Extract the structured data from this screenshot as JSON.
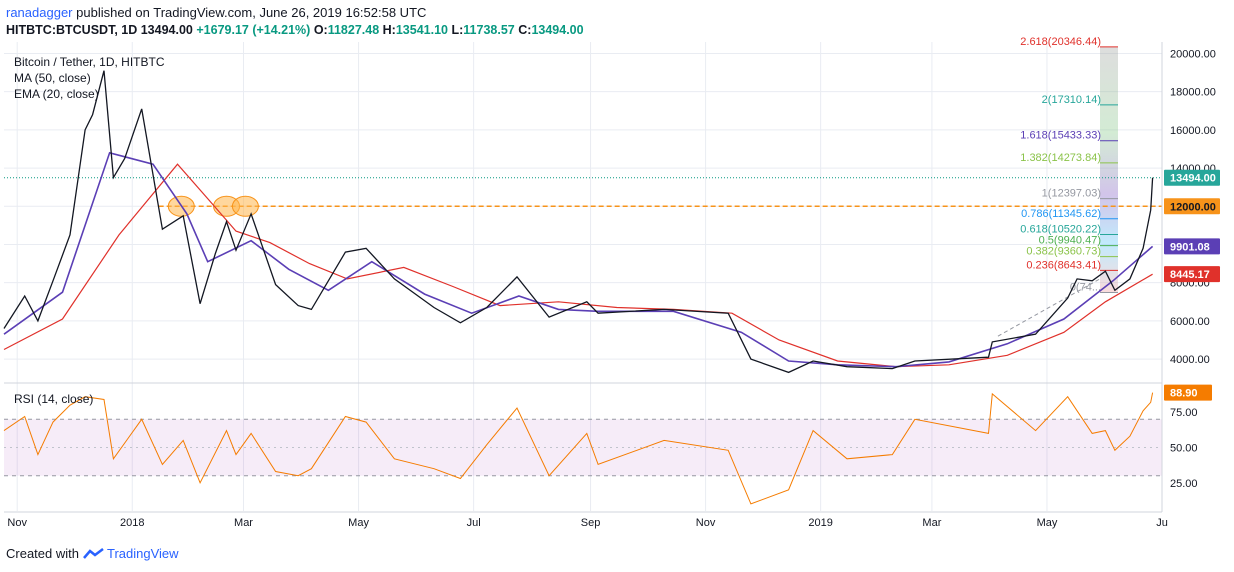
{
  "header": {
    "author": "ranadagger",
    "published_text": "published on TradingView.com, June 26, 2019 16:52:58 UTC",
    "symbol": "HITBTC:BTCUSDT, 1D",
    "price": "13494.00",
    "change": "+1679.17 (+14.21%)",
    "open_label": "O:",
    "open": "11827.48",
    "high_label": "H:",
    "high": "13541.10",
    "low_label": "L:",
    "low": "11738.57",
    "close_label": "C:",
    "close": "13494.00"
  },
  "legend": {
    "title": "Bitcoin / Tether, 1D, HITBTC",
    "ma": "MA (50, close)",
    "ema": "EMA (20, close)"
  },
  "footer": {
    "created_with": "Created with",
    "brand": "TradingView"
  },
  "colors": {
    "up": "#089981",
    "down": "#131722",
    "ema": "#5b3fb5",
    "ma": "#e0312b",
    "rsi": "#f57c00",
    "orange_line": "#f7931a",
    "grid": "#e9ecf2"
  },
  "chart_data": [
    {
      "type": "line",
      "title": "Bitcoin / Tether, 1D, HITBTC",
      "ylim": [
        2800,
        20600
      ],
      "y_ticks": [
        4000,
        6000,
        8000,
        10000,
        12000,
        14000,
        16000,
        18000,
        20000
      ],
      "y_tick_labels": [
        "4000.00",
        "6000.00",
        "8000.00",
        "10000.00",
        "12000.00",
        "14000.00",
        "16000.00",
        "18000.00",
        "20000.00"
      ],
      "x_tick_labels": [
        "Nov",
        "2018",
        "Mar",
        "May",
        "Jul",
        "Sep",
        "Nov",
        "2019",
        "Mar",
        "May",
        "Ju"
      ],
      "x_tick_dates": [
        "2017-11-01",
        "2018-01-01",
        "2018-03-01",
        "2018-05-01",
        "2018-07-01",
        "2018-09-01",
        "2018-11-01",
        "2019-01-01",
        "2019-03-01",
        "2019-05-01",
        "2019-07-01"
      ],
      "xlim": [
        "2017-10-25",
        "2019-07-01"
      ],
      "price_points": [
        [
          "2017-10-25",
          5600
        ],
        [
          "2017-11-05",
          7300
        ],
        [
          "2017-11-12",
          6000
        ],
        [
          "2017-11-20",
          8100
        ],
        [
          "2017-11-29",
          10500
        ],
        [
          "2017-12-07",
          16000
        ],
        [
          "2017-12-11",
          16800
        ],
        [
          "2017-12-17",
          19100
        ],
        [
          "2017-12-22",
          13500
        ],
        [
          "2017-12-28",
          14500
        ],
        [
          "2018-01-06",
          17100
        ],
        [
          "2018-01-17",
          10800
        ],
        [
          "2018-01-28",
          11500
        ],
        [
          "2018-02-06",
          6900
        ],
        [
          "2018-02-14",
          9500
        ],
        [
          "2018-02-20",
          11200
        ],
        [
          "2018-02-25",
          9700
        ],
        [
          "2018-03-05",
          11600
        ],
        [
          "2018-03-18",
          7900
        ],
        [
          "2018-03-30",
          6800
        ],
        [
          "2018-04-06",
          6600
        ],
        [
          "2018-04-24",
          9600
        ],
        [
          "2018-05-05",
          9800
        ],
        [
          "2018-05-20",
          8200
        ],
        [
          "2018-06-10",
          6700
        ],
        [
          "2018-06-24",
          5900
        ],
        [
          "2018-07-08",
          6700
        ],
        [
          "2018-07-24",
          8300
        ],
        [
          "2018-08-10",
          6200
        ],
        [
          "2018-08-30",
          7000
        ],
        [
          "2018-09-05",
          6400
        ],
        [
          "2018-10-10",
          6600
        ],
        [
          "2018-11-13",
          6400
        ],
        [
          "2018-11-25",
          4000
        ],
        [
          "2018-12-15",
          3300
        ],
        [
          "2018-12-28",
          3900
        ],
        [
          "2019-01-15",
          3600
        ],
        [
          "2019-02-08",
          3500
        ],
        [
          "2019-02-20",
          3900
        ],
        [
          "2019-03-31",
          4100
        ],
        [
          "2019-04-02",
          4900
        ],
        [
          "2019-04-25",
          5300
        ],
        [
          "2019-05-12",
          7200
        ],
        [
          "2019-05-17",
          8200
        ],
        [
          "2019-05-25",
          8100
        ],
        [
          "2019-06-01",
          8600
        ],
        [
          "2019-06-06",
          7600
        ],
        [
          "2019-06-14",
          8200
        ],
        [
          "2019-06-21",
          9800
        ],
        [
          "2019-06-25",
          11800
        ],
        [
          "2019-06-26",
          13494
        ]
      ],
      "ma50_points": [
        [
          "2017-10-25",
          4500
        ],
        [
          "2017-11-25",
          6100
        ],
        [
          "2017-12-25",
          10500
        ],
        [
          "2018-01-25",
          14200
        ],
        [
          "2018-02-10",
          12400
        ],
        [
          "2018-02-25",
          10700
        ],
        [
          "2018-03-15",
          10100
        ],
        [
          "2018-04-05",
          9000
        ],
        [
          "2018-04-25",
          8200
        ],
        [
          "2018-05-25",
          8800
        ],
        [
          "2018-06-20",
          7800
        ],
        [
          "2018-07-15",
          6800
        ],
        [
          "2018-08-15",
          7000
        ],
        [
          "2018-09-15",
          6700
        ],
        [
          "2018-10-15",
          6600
        ],
        [
          "2018-11-15",
          6400
        ],
        [
          "2018-12-10",
          5000
        ],
        [
          "2019-01-10",
          3900
        ],
        [
          "2019-02-10",
          3600
        ],
        [
          "2019-03-10",
          3700
        ],
        [
          "2019-04-10",
          4200
        ],
        [
          "2019-05-10",
          5400
        ],
        [
          "2019-06-01",
          7000
        ],
        [
          "2019-06-26",
          8445
        ]
      ],
      "ema20_points": [
        [
          "2017-10-25",
          5300
        ],
        [
          "2017-11-25",
          7500
        ],
        [
          "2017-12-20",
          14800
        ],
        [
          "2018-01-12",
          14200
        ],
        [
          "2018-01-30",
          11600
        ],
        [
          "2018-02-10",
          9100
        ],
        [
          "2018-03-05",
          10200
        ],
        [
          "2018-03-25",
          8700
        ],
        [
          "2018-04-15",
          7600
        ],
        [
          "2018-05-08",
          9100
        ],
        [
          "2018-06-05",
          7400
        ],
        [
          "2018-06-30",
          6400
        ],
        [
          "2018-07-25",
          7300
        ],
        [
          "2018-08-15",
          6600
        ],
        [
          "2018-09-05",
          6500
        ],
        [
          "2018-10-15",
          6500
        ],
        [
          "2018-11-20",
          5400
        ],
        [
          "2018-12-15",
          3900
        ],
        [
          "2019-01-10",
          3700
        ],
        [
          "2019-02-10",
          3600
        ],
        [
          "2019-03-10",
          3850
        ],
        [
          "2019-04-10",
          4800
        ],
        [
          "2019-05-10",
          6100
        ],
        [
          "2019-06-05",
          8100
        ],
        [
          "2019-06-26",
          9901
        ]
      ],
      "horizontal_line": {
        "value": 12000,
        "label": "12000.00"
      },
      "price_labels": [
        {
          "value": 13494,
          "label": "13494.00"
        },
        {
          "value": 9901,
          "label": "9901.08"
        },
        {
          "value": 8445,
          "label": "8445.17"
        }
      ],
      "fibonacci": [
        {
          "value": 20346.44,
          "label": "2.618(20346.44)"
        },
        {
          "value": 17310.14,
          "label": "2(17310.14)"
        },
        {
          "value": 15433.33,
          "label": "1.618(15433.33)"
        },
        {
          "value": 14273.84,
          "label": "1.382(14273.84)"
        },
        {
          "value": 12397.03,
          "label": "1(12397.03)"
        },
        {
          "value": 11345.62,
          "label": "0.786(11345.62)"
        },
        {
          "value": 10520.22,
          "label": "0.618(10520.22)"
        },
        {
          "value": 9940.47,
          "label": "0.5(9940.47)"
        },
        {
          "value": 9360.73,
          "label": "0.382(9360.73)"
        },
        {
          "value": 8643.41,
          "label": "0.236(8643.41)"
        },
        {
          "value": 7483.9,
          "label": "0(74..."
        }
      ],
      "highlights": [
        "2018-01-27",
        "2018-02-20",
        "2018-03-02"
      ]
    },
    {
      "type": "line",
      "title": "RSI (14, close)",
      "ylim": [
        5,
        95
      ],
      "y_ticks": [
        25,
        50,
        75
      ],
      "y_tick_labels": [
        "25.00",
        "50.00",
        "75.00"
      ],
      "band": [
        30,
        70
      ],
      "current": {
        "value": 88.9,
        "label": "88.90"
      },
      "rsi_points": [
        [
          "2017-10-25",
          62
        ],
        [
          "2017-11-05",
          72
        ],
        [
          "2017-11-12",
          45
        ],
        [
          "2017-11-20",
          68
        ],
        [
          "2017-11-29",
          80
        ],
        [
          "2017-12-07",
          86
        ],
        [
          "2017-12-17",
          84
        ],
        [
          "2017-12-22",
          42
        ],
        [
          "2018-01-06",
          70
        ],
        [
          "2018-01-17",
          38
        ],
        [
          "2018-01-28",
          55
        ],
        [
          "2018-02-06",
          25
        ],
        [
          "2018-02-20",
          62
        ],
        [
          "2018-02-25",
          45
        ],
        [
          "2018-03-05",
          60
        ],
        [
          "2018-03-18",
          33
        ],
        [
          "2018-03-30",
          30
        ],
        [
          "2018-04-06",
          35
        ],
        [
          "2018-04-24",
          72
        ],
        [
          "2018-05-05",
          68
        ],
        [
          "2018-05-20",
          42
        ],
        [
          "2018-06-10",
          35
        ],
        [
          "2018-06-24",
          28
        ],
        [
          "2018-07-08",
          52
        ],
        [
          "2018-07-24",
          78
        ],
        [
          "2018-08-10",
          30
        ],
        [
          "2018-08-30",
          60
        ],
        [
          "2018-09-05",
          38
        ],
        [
          "2018-10-10",
          55
        ],
        [
          "2018-11-13",
          48
        ],
        [
          "2018-11-25",
          10
        ],
        [
          "2018-12-15",
          20
        ],
        [
          "2018-12-28",
          62
        ],
        [
          "2019-01-15",
          42
        ],
        [
          "2019-02-08",
          45
        ],
        [
          "2019-02-20",
          70
        ],
        [
          "2019-03-31",
          60
        ],
        [
          "2019-04-02",
          88
        ],
        [
          "2019-04-25",
          62
        ],
        [
          "2019-05-12",
          86
        ],
        [
          "2019-05-17",
          76
        ],
        [
          "2019-05-25",
          60
        ],
        [
          "2019-06-01",
          62
        ],
        [
          "2019-06-06",
          48
        ],
        [
          "2019-06-14",
          58
        ],
        [
          "2019-06-21",
          76
        ],
        [
          "2019-06-25",
          82
        ],
        [
          "2019-06-26",
          88.9
        ]
      ]
    }
  ]
}
